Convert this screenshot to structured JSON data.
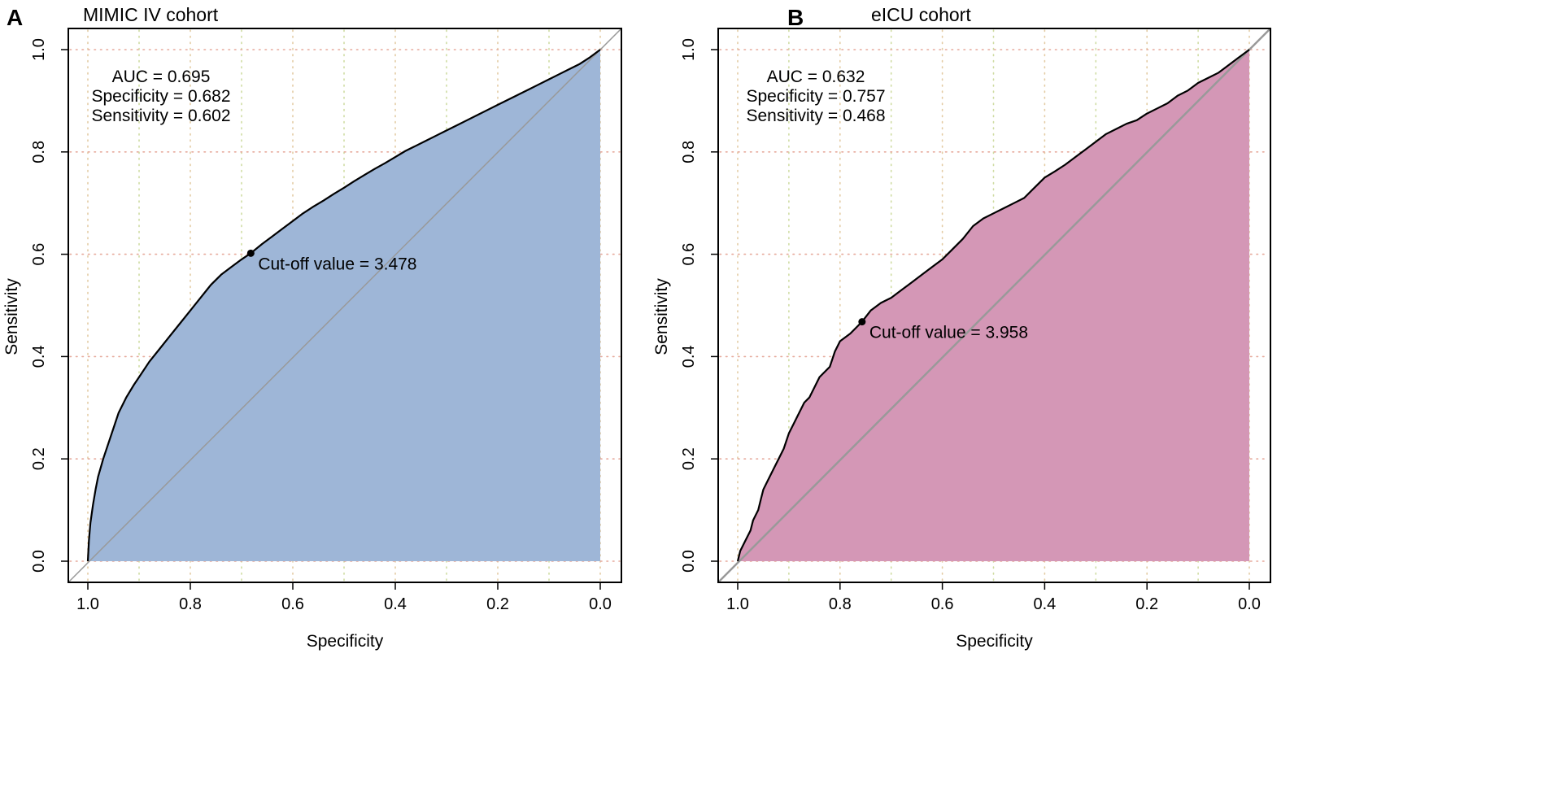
{
  "chart_data": [
    {
      "type": "area",
      "panel_label": "A",
      "title": "MIMIC IV cohort",
      "xlabel": "Specificity",
      "ylabel": "Sensitivity",
      "xlim": [
        1.0,
        0.0
      ],
      "ylim": [
        0.0,
        1.0
      ],
      "x_ticks": [
        "1.0",
        "0.8",
        "0.6",
        "0.4",
        "0.2",
        "0.0"
      ],
      "y_ticks": [
        "0.0",
        "0.2",
        "0.4",
        "0.6",
        "0.8",
        "1.0"
      ],
      "grid": true,
      "fill_color": "#9EB6D7",
      "auc_text": "AUC = 0.695",
      "specificity_text": "Specificity = 0.682",
      "sensitivity_text": "Sensitivity = 0.602",
      "cutoff_text": "Cut-off value = 3.478",
      "cutoff_point": {
        "specificity": 0.682,
        "sensitivity": 0.602
      },
      "roc_curve": {
        "specificity": [
          1.0,
          0.998,
          0.995,
          0.99,
          0.985,
          0.98,
          0.97,
          0.96,
          0.95,
          0.94,
          0.925,
          0.91,
          0.9,
          0.88,
          0.86,
          0.84,
          0.82,
          0.8,
          0.78,
          0.76,
          0.74,
          0.72,
          0.7,
          0.682,
          0.66,
          0.64,
          0.62,
          0.6,
          0.58,
          0.56,
          0.54,
          0.52,
          0.5,
          0.48,
          0.46,
          0.44,
          0.42,
          0.4,
          0.38,
          0.36,
          0.34,
          0.32,
          0.3,
          0.28,
          0.26,
          0.24,
          0.22,
          0.2,
          0.18,
          0.16,
          0.14,
          0.12,
          0.1,
          0.08,
          0.06,
          0.04,
          0.02,
          0.0
        ],
        "sensitivity": [
          0.0,
          0.04,
          0.075,
          0.11,
          0.14,
          0.165,
          0.2,
          0.23,
          0.26,
          0.29,
          0.32,
          0.345,
          0.36,
          0.39,
          0.415,
          0.44,
          0.465,
          0.49,
          0.515,
          0.54,
          0.56,
          0.575,
          0.59,
          0.602,
          0.62,
          0.635,
          0.65,
          0.665,
          0.68,
          0.693,
          0.705,
          0.718,
          0.73,
          0.743,
          0.755,
          0.767,
          0.778,
          0.79,
          0.802,
          0.812,
          0.822,
          0.832,
          0.842,
          0.852,
          0.862,
          0.872,
          0.882,
          0.892,
          0.902,
          0.912,
          0.922,
          0.932,
          0.942,
          0.952,
          0.962,
          0.972,
          0.985,
          1.0
        ]
      }
    },
    {
      "type": "area",
      "panel_label": "B",
      "title": "eICU cohort",
      "xlabel": "Specificity",
      "ylabel": "Sensitivity",
      "xlim": [
        1.0,
        0.0
      ],
      "ylim": [
        0.0,
        1.0
      ],
      "x_ticks": [
        "1.0",
        "0.8",
        "0.6",
        "0.4",
        "0.2",
        "0.0"
      ],
      "y_ticks": [
        "0.0",
        "0.2",
        "0.4",
        "0.6",
        "0.8",
        "1.0"
      ],
      "grid": true,
      "fill_color": "#D497B6",
      "auc_text": "AUC = 0.632",
      "specificity_text": "Specificity = 0.757",
      "sensitivity_text": "Sensitivity = 0.468",
      "cutoff_text": "Cut-off value = 3.958",
      "cutoff_point": {
        "specificity": 0.757,
        "sensitivity": 0.468
      },
      "roc_curve": {
        "specificity": [
          1.0,
          0.995,
          0.985,
          0.975,
          0.97,
          0.96,
          0.955,
          0.95,
          0.94,
          0.93,
          0.92,
          0.91,
          0.9,
          0.89,
          0.88,
          0.87,
          0.86,
          0.85,
          0.84,
          0.82,
          0.81,
          0.8,
          0.78,
          0.757,
          0.74,
          0.72,
          0.7,
          0.68,
          0.66,
          0.64,
          0.62,
          0.6,
          0.58,
          0.56,
          0.54,
          0.52,
          0.5,
          0.48,
          0.46,
          0.44,
          0.42,
          0.4,
          0.38,
          0.36,
          0.34,
          0.32,
          0.3,
          0.28,
          0.26,
          0.24,
          0.22,
          0.2,
          0.18,
          0.16,
          0.14,
          0.12,
          0.1,
          0.08,
          0.06,
          0.04,
          0.02,
          0.0
        ],
        "sensitivity": [
          0.0,
          0.02,
          0.04,
          0.06,
          0.08,
          0.1,
          0.12,
          0.14,
          0.16,
          0.18,
          0.2,
          0.22,
          0.25,
          0.27,
          0.29,
          0.31,
          0.32,
          0.34,
          0.36,
          0.38,
          0.41,
          0.43,
          0.445,
          0.468,
          0.49,
          0.505,
          0.515,
          0.53,
          0.545,
          0.56,
          0.575,
          0.59,
          0.61,
          0.63,
          0.655,
          0.67,
          0.68,
          0.69,
          0.7,
          0.71,
          0.73,
          0.75,
          0.762,
          0.775,
          0.79,
          0.805,
          0.82,
          0.835,
          0.845,
          0.855,
          0.862,
          0.875,
          0.885,
          0.895,
          0.91,
          0.92,
          0.935,
          0.945,
          0.955,
          0.97,
          0.985,
          1.0
        ]
      }
    }
  ]
}
